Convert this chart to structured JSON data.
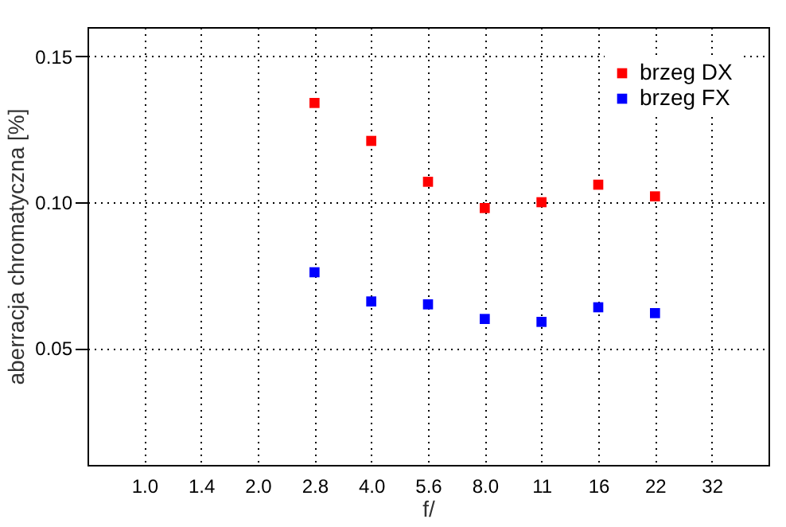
{
  "chart_data": {
    "type": "scatter",
    "xlabel": "f/",
    "ylabel": "aberracja chromatyczna [%]",
    "categories": [
      "1.0",
      "1.4",
      "2.0",
      "2.8",
      "4.0",
      "5.6",
      "8.0",
      "11",
      "16",
      "22",
      "32"
    ],
    "series": [
      {
        "name": "brzeg DX",
        "color": "#ff0000",
        "values": [
          null,
          null,
          null,
          0.134,
          0.121,
          0.107,
          0.098,
          0.1,
          0.106,
          0.102,
          null
        ]
      },
      {
        "name": "brzeg FX",
        "color": "#0000ff",
        "values": [
          null,
          null,
          null,
          0.076,
          0.066,
          0.065,
          0.06,
          0.059,
          0.064,
          0.062,
          null
        ]
      }
    ],
    "ylim": [
      0.01,
      0.16
    ],
    "yticks": [
      {
        "value": 0.05,
        "label": "0.05"
      },
      {
        "value": 0.1,
        "label": "0.10"
      },
      {
        "value": 0.15,
        "label": "0.15"
      }
    ],
    "grid": true,
    "legend": "top right",
    "marker": "square"
  }
}
